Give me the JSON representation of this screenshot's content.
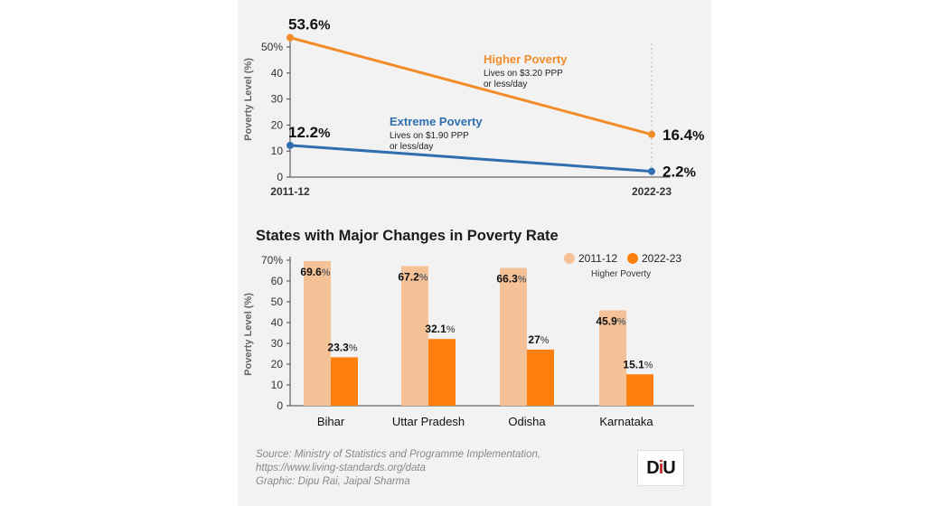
{
  "colors": {
    "higher": "#f28c28",
    "extreme": "#2f6faf",
    "bar_2011": "#f5c197",
    "bar_2022": "#ff7f0e",
    "axis": "#444444",
    "grid": "#bbbbbb"
  },
  "chart_data": [
    {
      "type": "line",
      "ylabel": "Poverty Level (%)",
      "x": [
        "2011-12",
        "2022-23"
      ],
      "ylim": [
        0,
        55
      ],
      "yticks": [
        "0",
        "10",
        "20",
        "30",
        "40",
        "50%"
      ],
      "grid": false,
      "series": [
        {
          "name": "Higher Poverty",
          "note": "Lives on $3.20 PPP or less/day",
          "values": [
            53.6,
            16.4
          ],
          "labels": [
            "53.6",
            "16.4"
          ],
          "color_key": "higher"
        },
        {
          "name": "Extreme Poverty",
          "note": "Lives on $1.90 PPP or less/day",
          "values": [
            12.2,
            2.2
          ],
          "labels": [
            "12.2",
            "2.2"
          ],
          "color_key": "extreme"
        }
      ],
      "note_lines": {
        "higher": [
          "Lives on $3.20 PPP",
          "or less/day"
        ],
        "extreme": [
          "Lives on $1.90 PPP",
          "or less/day"
        ]
      },
      "unit_symbol": "%"
    },
    {
      "type": "bar",
      "title": "States with Major Changes in Poverty Rate",
      "ylabel": "Poverty Level (%)",
      "categories": [
        "Bihar",
        "Uttar Pradesh",
        "Odisha",
        "Karnataka"
      ],
      "ylim": [
        0,
        70
      ],
      "yticks": [
        "0",
        "10",
        "20",
        "30",
        "40",
        "50",
        "60",
        "70%"
      ],
      "legend_position": "top-right",
      "legend_note": "Higher Poverty",
      "series": [
        {
          "name": "2011-12",
          "values": [
            69.6,
            67.2,
            66.3,
            45.9
          ],
          "labels": [
            "69.6",
            "67.2",
            "66.3",
            "45.9"
          ]
        },
        {
          "name": "2022-23",
          "values": [
            23.3,
            32.1,
            27,
            15.1
          ],
          "labels": [
            "23.3",
            "32.1",
            "27",
            "15.1"
          ]
        }
      ],
      "unit_symbol": "%"
    }
  ],
  "footer": {
    "source_line1": "Source: Ministry of Statistics and Programme Implementation,",
    "source_line2": "https://www.living-standards.org/data",
    "graphic_credit": "Graphic: Dipu Rai, Jaipal Sharma",
    "logo_text_d": "D",
    "logo_text_i": "i",
    "logo_text_u": "U"
  }
}
